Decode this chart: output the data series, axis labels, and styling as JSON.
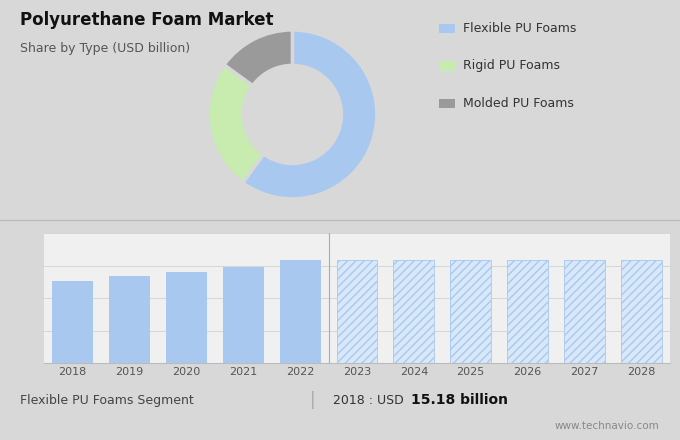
{
  "title": "Polyurethane Foam Market",
  "subtitle": "Share by Type (USD billion)",
  "bg_color_top": "#d8d8d8",
  "bg_color_bottom": "#f0f0f0",
  "donut_values": [
    60,
    25,
    15
  ],
  "donut_colors": [
    "#a8c8f0",
    "#c8ebb0",
    "#9a9a9a"
  ],
  "donut_labels": [
    "Flexible PU Foams",
    "Rigid PU Foams",
    "Molded PU Foams"
  ],
  "bar_years_solid": [
    2018,
    2019,
    2020,
    2021,
    2022
  ],
  "bar_values_solid": [
    15.18,
    16.0,
    16.9,
    17.8,
    19.0
  ],
  "bar_years_hatched": [
    2023,
    2024,
    2025,
    2026,
    2027,
    2028
  ],
  "bar_values_hatched": [
    19.0,
    19.0,
    19.0,
    19.0,
    19.0,
    19.0
  ],
  "bar_color_solid": "#a8c8f0",
  "bar_color_hatched_fill": "#d8e8f8",
  "bar_color_hatched_line": "#a8c8f0",
  "hatch_pattern": "////",
  "footer_left": "Flexible PU Foams Segment",
  "footer_right_plain": "2018 : USD ",
  "footer_right_bold": "15.18 billion",
  "footer_watermark": "www.technavio.com",
  "title_fontsize": 12,
  "subtitle_fontsize": 9,
  "legend_fontsize": 9,
  "bar_xlabel_fontsize": 8,
  "footer_fontsize": 9
}
